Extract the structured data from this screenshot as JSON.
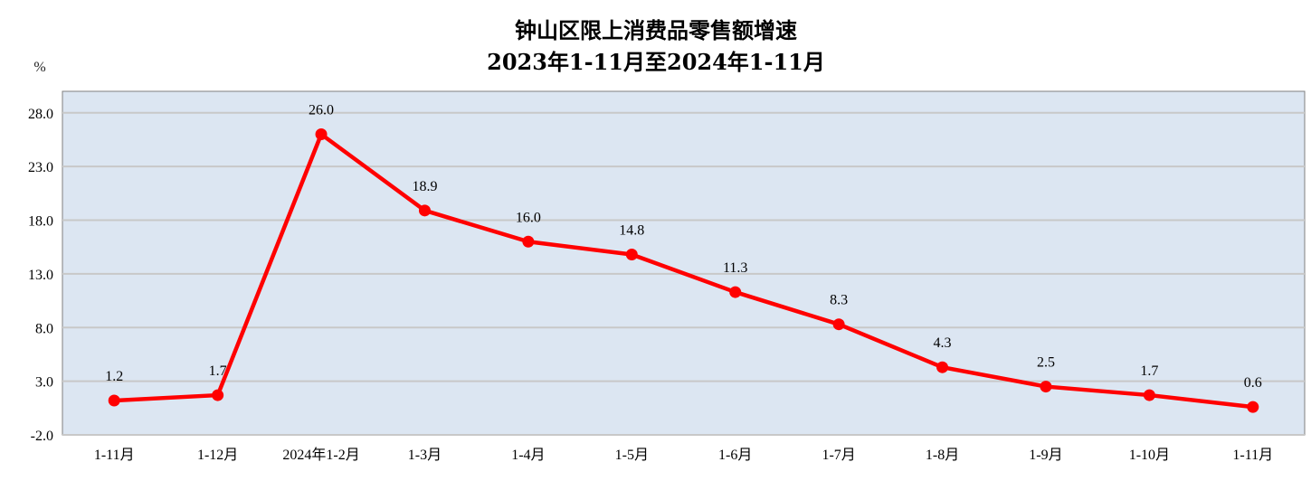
{
  "chart_data": {
    "type": "line",
    "title": "钟山区限上消费品零售额增速",
    "subtitle": "2023年1-11月至2024年1-11月",
    "ylabel": "%",
    "xlabel": "",
    "categories": [
      "1-11月",
      "1-12月",
      "2024年1-2月",
      "1-3月",
      "1-4月",
      "1-5月",
      "1-6月",
      "1-7月",
      "1-8月",
      "1-9月",
      "1-10月",
      "1-11月"
    ],
    "series": [
      {
        "values": [
          1.2,
          1.7,
          26.0,
          18.9,
          16.0,
          14.8,
          11.3,
          8.3,
          4.3,
          2.5,
          1.7,
          0.6
        ]
      }
    ],
    "data_labels": [
      "1.2",
      "1.7",
      "26.0",
      "18.9",
      "16.0",
      "14.8",
      "11.3",
      "8.3",
      "4.3",
      "2.5",
      "1.7",
      "0.6"
    ],
    "ylim": [
      -2.0,
      30.0
    ],
    "yticks": [
      -2.0,
      3.0,
      8.0,
      13.0,
      18.0,
      23.0,
      28.0
    ],
    "ytick_labels": [
      "-2.0",
      "3.0",
      "8.0",
      "13.0",
      "18.0",
      "23.0",
      "28.0"
    ],
    "grid": true,
    "colors": {
      "line": "#ff0000",
      "plot_background": "#dce6f2",
      "grid": "#c8c8c8"
    }
  }
}
